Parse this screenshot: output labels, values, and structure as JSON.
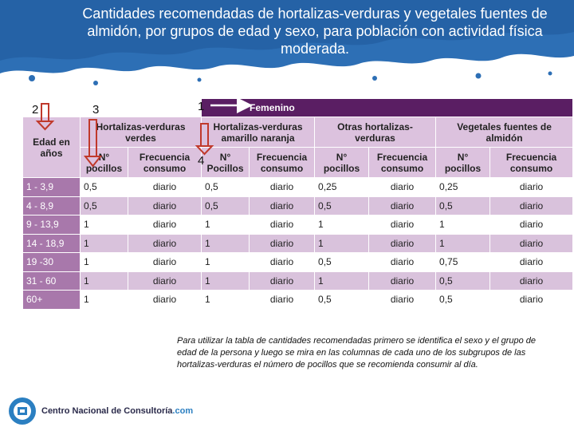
{
  "title": "Cantidades recomendadas de hortalizas-verduras y vegetales fuentes de almidón, por grupos de edad y sexo, para población con actividad física moderada.",
  "markers": {
    "m1": "1",
    "m2": "2",
    "m3": "3",
    "m4": "4"
  },
  "table": {
    "sex_label": "Femenino",
    "age_header": "Edad en años",
    "groups": [
      "Hortalizas-verduras verdes",
      "Hortalizas-verduras amarillo naranja",
      "Otras hortalizas-verduras",
      "Vegetales fuentes de almidón"
    ],
    "sub_headers": [
      "N° pocillos",
      "Frecuencia consumo",
      "N° Pocillos",
      "Frecuencia consumo",
      "N° pocillos",
      "Frecuencia consumo",
      "N° pocillos",
      "Frecuencia consumo"
    ],
    "rows": [
      [
        "1 - 3,9",
        "0,5",
        "diario",
        "0,5",
        "diario",
        "0,25",
        "diario",
        "0,25",
        "diario"
      ],
      [
        "4 - 8,9",
        "0,5",
        "diario",
        "0,5",
        "diario",
        "0,5",
        "diario",
        "0,5",
        "diario"
      ],
      [
        "9 - 13,9",
        "1",
        "diario",
        "1",
        "diario",
        "1",
        "diario",
        "1",
        "diario"
      ],
      [
        "14 - 18,9",
        "1",
        "diario",
        "1",
        "diario",
        "1",
        "diario",
        "1",
        "diario"
      ],
      [
        "19 -30",
        "1",
        "diario",
        "1",
        "diario",
        "0,5",
        "diario",
        "0,75",
        "diario"
      ],
      [
        "31 - 60",
        "1",
        "diario",
        "1",
        "diario",
        "1",
        "diario",
        "0,5",
        "diario"
      ],
      [
        "60+",
        "1",
        "diario",
        "1",
        "diario",
        "0,5",
        "diario",
        "0,5",
        "diario"
      ]
    ]
  },
  "note": "Para utilizar la tabla de cantidades recomendadas primero se identifica el sexo y el grupo de edad de la persona y luego se mira en las columnas de cada uno de los subgrupos de las hortalizas-verduras el número de pocillos que se recomienda consumir al día.",
  "logo": {
    "name": "Centro Nacional de Consultoría",
    "domain": ".com"
  },
  "colors": {
    "header_dark": "#5a1e63",
    "header_light": "#dcc2de",
    "row_alt": "#d9c2dc",
    "age_col": "#a878ab",
    "arrow": "#c0392b",
    "banner": "#2d6fb5"
  }
}
